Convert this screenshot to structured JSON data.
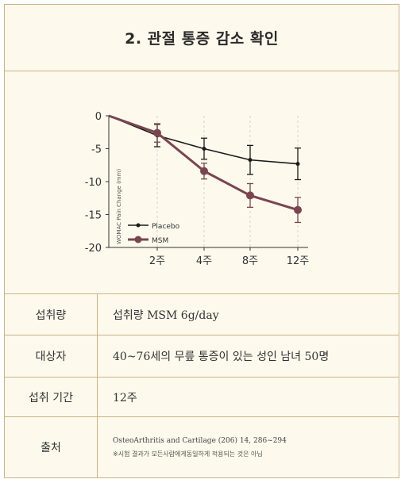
{
  "header": {
    "title": "2. 관절 통증 감소 확인"
  },
  "chart_data": {
    "type": "line",
    "categories": [
      "0",
      "2주",
      "4주",
      "8주",
      "12주"
    ],
    "ylabel": "WOMAC Pain Change (mm)",
    "ylim": [
      -20,
      0
    ],
    "yticks": [
      "0",
      "-5",
      "-10",
      "-15",
      "-20"
    ],
    "xtick_labels": [
      "2주",
      "4주",
      "8주",
      "12주"
    ],
    "grid": "vertical dashed at 2주, 4주, 8주, 12주",
    "legend_position": "bottom-left",
    "series": [
      {
        "name": "Placebo",
        "color": "#1a1a1a",
        "values": [
          0,
          -3.0,
          -5.0,
          -6.7,
          -7.3
        ],
        "error": [
          0,
          1.7,
          1.6,
          2.2,
          2.4
        ]
      },
      {
        "name": "MSM",
        "color": "#7a4550",
        "values": [
          0,
          -2.6,
          -8.4,
          -12.1,
          -14.3
        ],
        "error": [
          0,
          1.4,
          1.2,
          1.8,
          1.9
        ]
      }
    ]
  },
  "table": {
    "rows": [
      {
        "label": "섭취량",
        "value": "섭취량 MSM 6g/day"
      },
      {
        "label": "대상자",
        "value": "40~76세의 무릎 통증이 있는 성인 남녀 50명"
      },
      {
        "label": "섭취 기간",
        "value": "12주"
      },
      {
        "label": "출처",
        "value": "OsteoArthritis and Cartilage (206) 14, 286~294",
        "note": "※시험 결과가 모든사람에게동일하게 적용되는 것은 아님"
      }
    ]
  }
}
